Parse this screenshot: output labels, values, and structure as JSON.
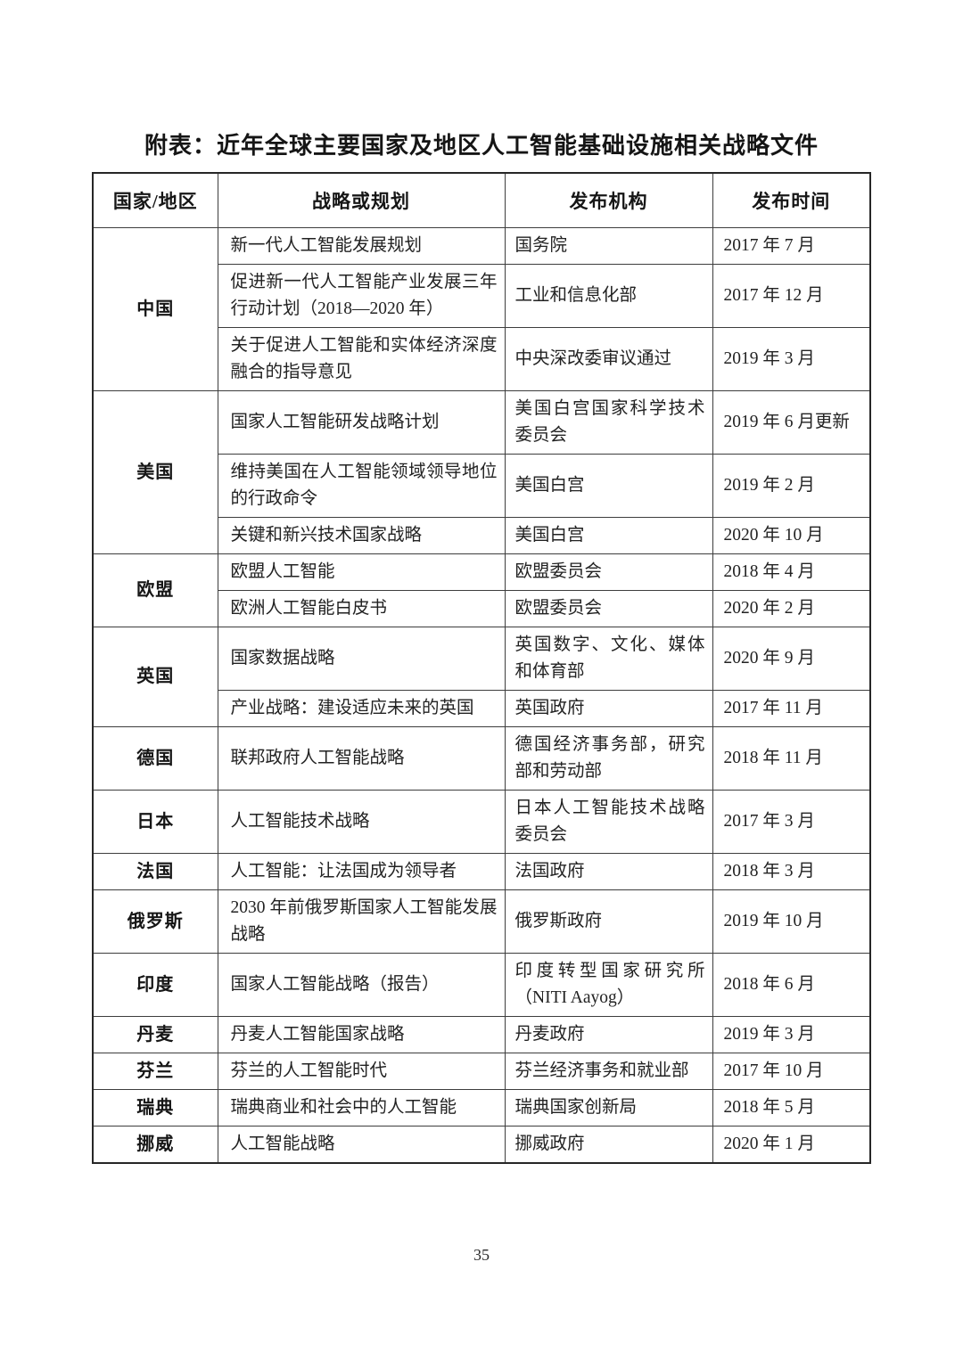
{
  "title": "附表：近年全球主要国家及地区人工智能基础设施相关战略文件",
  "page_number": "35",
  "table": {
    "columns": [
      "国家/地区",
      "战略或规划",
      "发布机构",
      "发布时间"
    ],
    "groups": [
      {
        "region": "中国",
        "rows": [
          {
            "strategy": "新一代人工智能发展规划",
            "agency": "国务院",
            "date": "2017 年 7 月"
          },
          {
            "strategy": "促进新一代人工智能产业发展三年行动计划（2018—2020 年）",
            "agency": "工业和信息化部",
            "date": "2017 年 12 月"
          },
          {
            "strategy": "关于促进人工智能和实体经济深度融合的指导意见",
            "agency": "中央深改委审议通过",
            "date": "2019 年 3 月"
          }
        ]
      },
      {
        "region": "美国",
        "rows": [
          {
            "strategy": "国家人工智能研发战略计划",
            "agency": "美国白宫国家科学技术委员会",
            "date": "2019 年 6 月更新"
          },
          {
            "strategy": "维持美国在人工智能领域领导地位的行政命令",
            "agency": "美国白宫",
            "date": "2019 年 2 月"
          },
          {
            "strategy": "关键和新兴技术国家战略",
            "agency": "美国白宫",
            "date": "2020 年 10 月"
          }
        ]
      },
      {
        "region": "欧盟",
        "rows": [
          {
            "strategy": "欧盟人工智能",
            "agency": "欧盟委员会",
            "date": "2018 年 4 月"
          },
          {
            "strategy": "欧洲人工智能白皮书",
            "agency": "欧盟委员会",
            "date": "2020 年 2 月"
          }
        ]
      },
      {
        "region": "英国",
        "rows": [
          {
            "strategy": "国家数据战略",
            "agency": "英国数字、文化、媒体和体育部",
            "date": "2020 年 9 月"
          },
          {
            "strategy": "产业战略：建设适应未来的英国",
            "agency": "英国政府",
            "date": "2017 年 11 月"
          }
        ]
      },
      {
        "region": "德国",
        "rows": [
          {
            "strategy": "联邦政府人工智能战略",
            "agency": "德国经济事务部，研究部和劳动部",
            "date": "2018 年 11 月"
          }
        ]
      },
      {
        "region": "日本",
        "rows": [
          {
            "strategy": "人工智能技术战略",
            "agency": "日本人工智能技术战略委员会",
            "date": "2017 年 3 月"
          }
        ]
      },
      {
        "region": "法国",
        "rows": [
          {
            "strategy": "人工智能：让法国成为领导者",
            "agency": "法国政府",
            "date": "2018 年 3 月"
          }
        ]
      },
      {
        "region": "俄罗斯",
        "rows": [
          {
            "strategy": "2030 年前俄罗斯国家人工智能发展战略",
            "agency": "俄罗斯政府",
            "date": "2019 年 10 月"
          }
        ]
      },
      {
        "region": "印度",
        "rows": [
          {
            "strategy": "国家人工智能战略（报告）",
            "agency": "印度转型国家研究所（NITI Aayog）",
            "date": "2018 年 6 月"
          }
        ]
      },
      {
        "region": "丹麦",
        "rows": [
          {
            "strategy": "丹麦人工智能国家战略",
            "agency": "丹麦政府",
            "date": "2019 年 3 月"
          }
        ]
      },
      {
        "region": "芬兰",
        "rows": [
          {
            "strategy": "芬兰的人工智能时代",
            "agency": "芬兰经济事务和就业部",
            "date": "2017 年 10 月"
          }
        ]
      },
      {
        "region": "瑞典",
        "rows": [
          {
            "strategy": "瑞典商业和社会中的人工智能",
            "agency": "瑞典国家创新局",
            "date": "2018 年 5 月"
          }
        ]
      },
      {
        "region": "挪威",
        "rows": [
          {
            "strategy": "人工智能战略",
            "agency": "挪威政府",
            "date": "2020 年 1 月"
          }
        ]
      }
    ]
  }
}
